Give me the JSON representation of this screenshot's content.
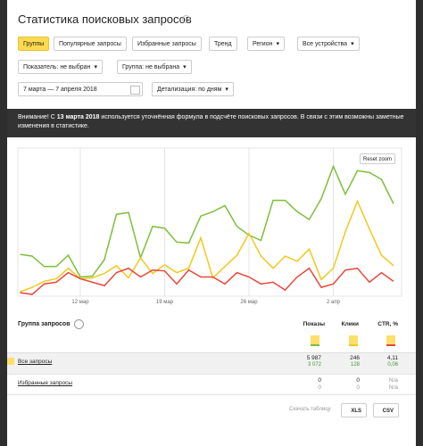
{
  "header": {
    "title": "Статистика поисковых запросов"
  },
  "tabs": [
    "Группы",
    "Популярные запросы",
    "Избранные запросы",
    "Тренд"
  ],
  "filters": {
    "region": "Регион",
    "devices": "Все устройства",
    "indicator": "Показатель: не выбран",
    "group": "Группа: не выбрана",
    "date_range": "7 марта — 7 апреля 2018",
    "detail": "Детализация: по дням"
  },
  "notice": {
    "lead": "Внимание! С",
    "date": "13 марта 2018",
    "text": "используется уточнённая формула в подсчёте поисковых запросов. В связи с этим возможны заметные изменения в статистике."
  },
  "chart_controls": {
    "reset_zoom": "Reset zoom"
  },
  "chart_data": {
    "type": "line",
    "categories": [
      null,
      null,
      null,
      null,
      null,
      "12 мар",
      null,
      null,
      null,
      null,
      null,
      null,
      "19 мар",
      null,
      null,
      null,
      null,
      null,
      null,
      "26 мар",
      null,
      null,
      null,
      null,
      null,
      null,
      "2 апр",
      null,
      null,
      null,
      null,
      null
    ],
    "series": [
      {
        "name": "Показы",
        "color": "#7dbf3b",
        "values": [
          48,
          46,
          34,
          34,
          47,
          22,
          23,
          42,
          94,
          96,
          44,
          80,
          78,
          62,
          61,
          92,
          97,
          104,
          80,
          70,
          64,
          110,
          110,
          97,
          88,
          112,
          149,
          117,
          144,
          142,
          134,
          106
        ]
      },
      {
        "name": "Клики",
        "color": "#f2c81d",
        "values": [
          5,
          10,
          17,
          20,
          32,
          20,
          21,
          26,
          35,
          21,
          44,
          26,
          36,
          27,
          32,
          67,
          21,
          34,
          47,
          72,
          46,
          32,
          46,
          40,
          54,
          19,
          32,
          74,
          109,
          77,
          47,
          35
        ]
      },
      {
        "name": "CTR, %",
        "color": "#e8473a",
        "values": [
          4,
          2,
          14,
          16,
          27,
          20,
          16,
          12,
          27,
          32,
          22,
          30,
          29,
          14,
          30,
          22,
          22,
          14,
          27,
          22,
          14,
          16,
          7,
          22,
          32,
          10,
          14,
          30,
          32,
          16,
          27,
          17
        ]
      }
    ],
    "ylim": [
      0,
      170
    ],
    "grid": true
  },
  "table": {
    "group_header": "Группа запросов",
    "columns": [
      "Показы",
      "Клики",
      "CTR, %"
    ],
    "rows": [
      {
        "name": "Все запросы",
        "cells": [
          [
            "5 987",
            "3 072"
          ],
          [
            "246",
            "128"
          ],
          [
            "4,11",
            "0,06"
          ]
        ]
      },
      {
        "name": "Избранные запросы",
        "cells": [
          [
            "0",
            "0"
          ],
          [
            "0",
            "0"
          ],
          [
            "N/a",
            "N/a"
          ]
        ]
      }
    ]
  },
  "footer": {
    "download": "Скачать таблицу",
    "buttons": [
      "XLS",
      "CSV"
    ]
  }
}
